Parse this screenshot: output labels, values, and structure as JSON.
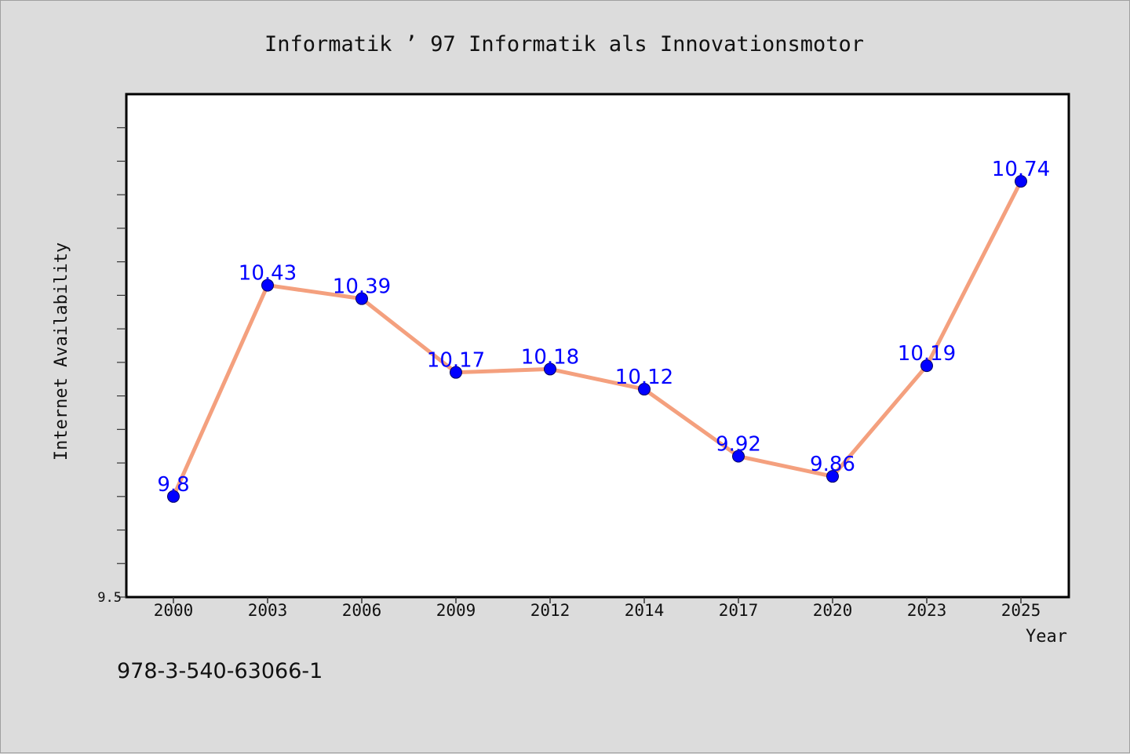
{
  "footer_text": "978-3-540-63066-1",
  "chart_data": {
    "type": "line",
    "title": "Informatik ’ 97 Informatik als Innovationsmotor",
    "xlabel": "Year",
    "ylabel": "Internet Availability",
    "categories": [
      "2000",
      "2003",
      "2006",
      "2009",
      "2012",
      "2014",
      "2017",
      "2020",
      "2023",
      "2025"
    ],
    "series": [
      {
        "values": [
          9.8,
          10.43,
          10.39,
          10.17,
          10.18,
          10.12,
          9.92,
          9.86,
          10.19,
          10.74
        ],
        "data_labels": [
          "9.8",
          "10.43",
          "10.39",
          "10.17",
          "10.18",
          "10.12",
          "9.92",
          "9.86",
          "10.19",
          "10.74"
        ]
      }
    ],
    "ylim": [
      9.5,
      11.0
    ],
    "ytick_labels": [
      "9.5"
    ],
    "grid": false,
    "line_color": "#f4a07e",
    "marker_color": "#0000ff",
    "label_color": "#0000ff",
    "plot_background": "#ffffff",
    "page_background": "#dcdcdc"
  }
}
